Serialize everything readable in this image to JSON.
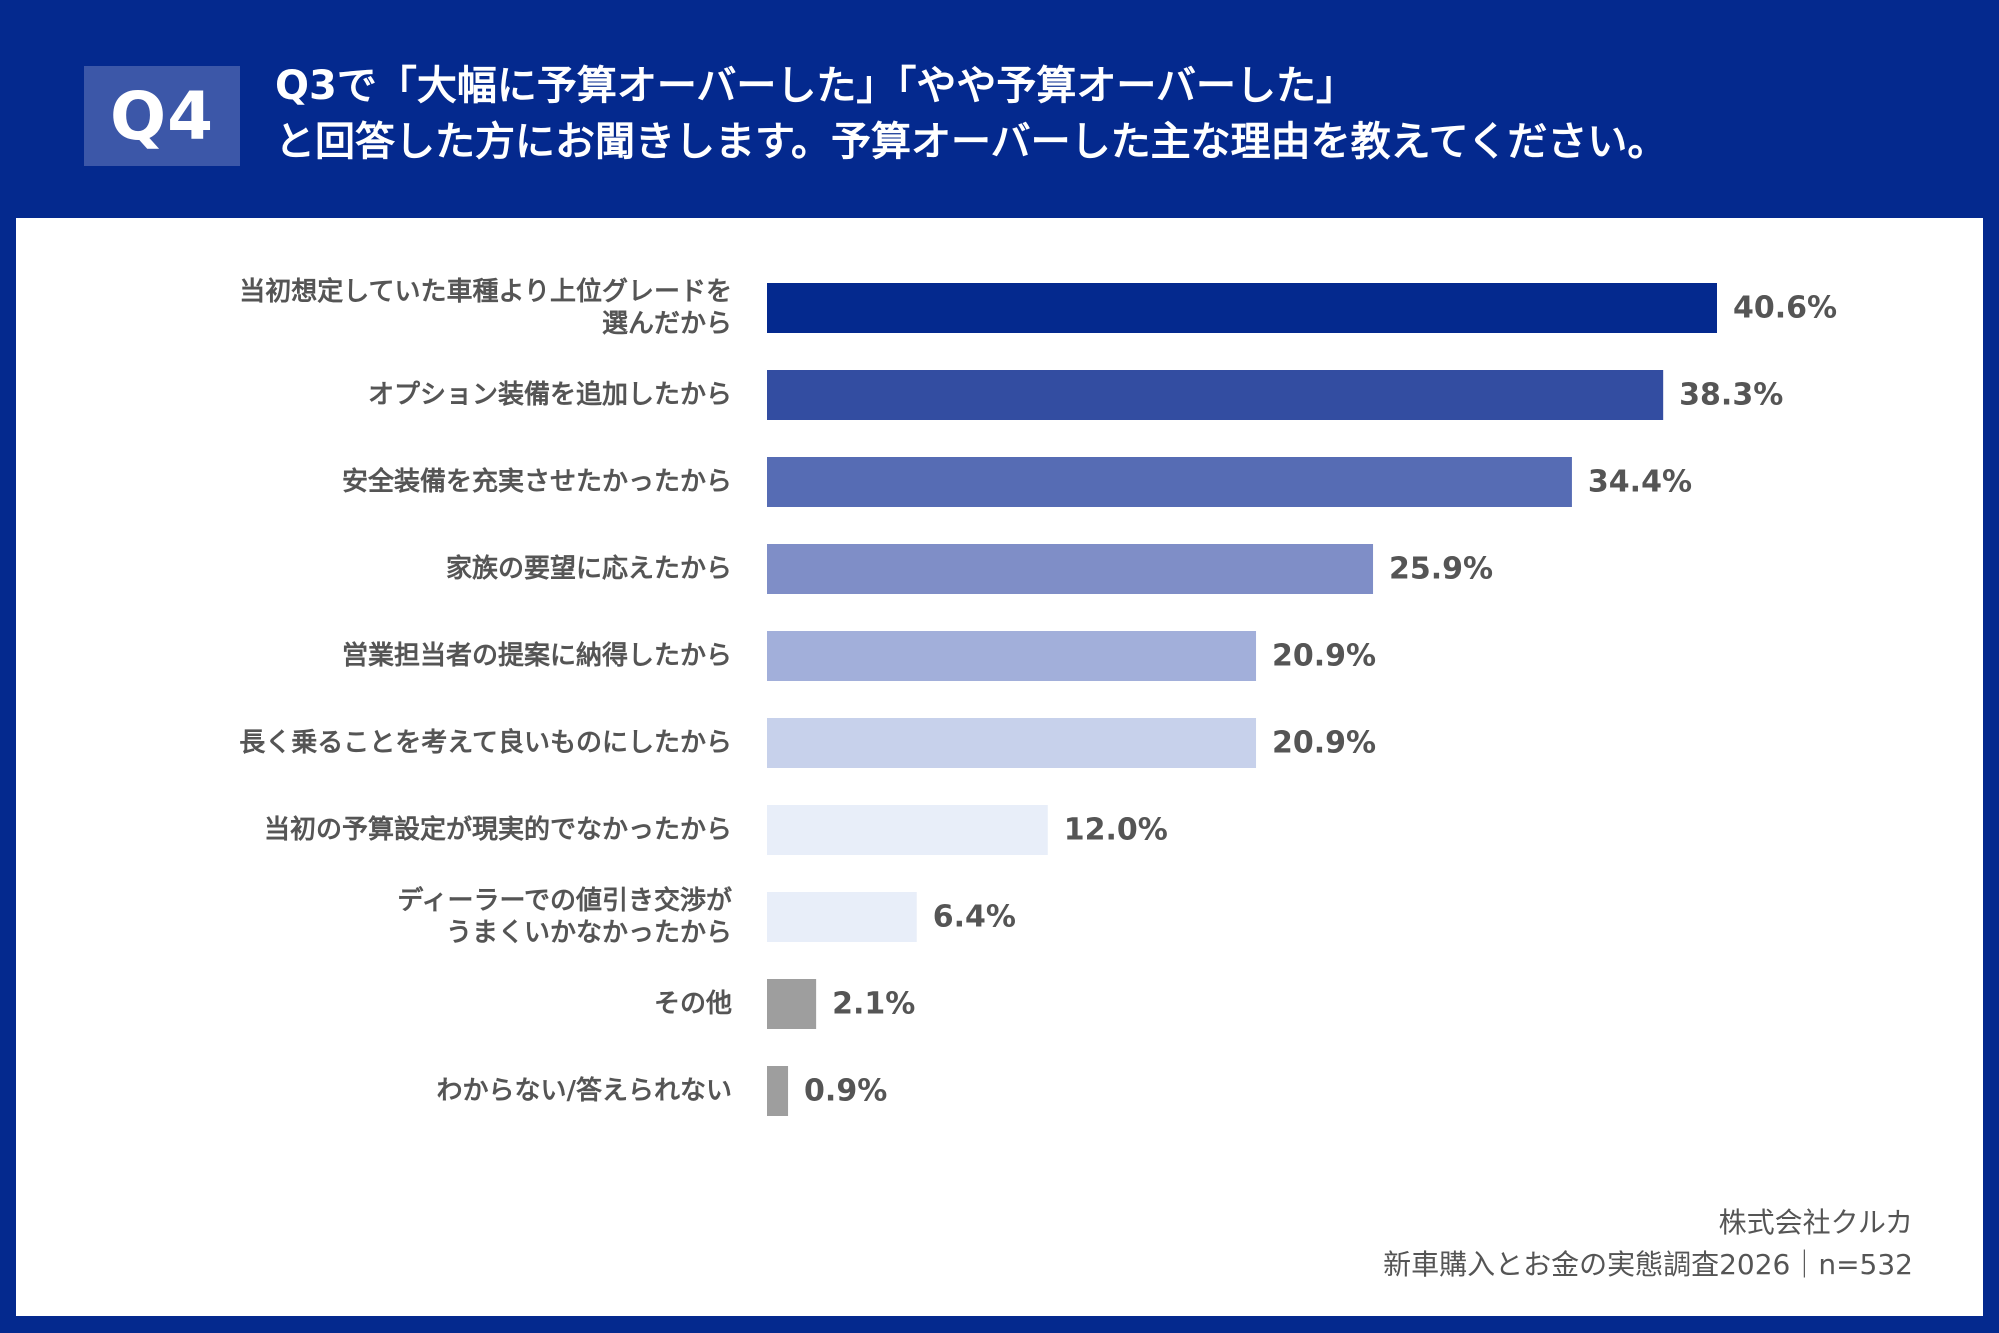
{
  "header": {
    "badge": "Q4",
    "title_line1": "Q3で「大幅に予算オーバーした」「やや予算オーバーした」",
    "title_line2": "と回答した方にお聞きします。予算オーバーした主な理由を教えてください。"
  },
  "colors": {
    "background": "#04298e",
    "panel": "#ffffff",
    "text": "#555555",
    "badge": "#3c57a8"
  },
  "chart_data": {
    "type": "bar",
    "orientation": "horizontal",
    "unit": "%",
    "categories": [
      [
        "当初想定していた車種より上位グレードを",
        "選んだから"
      ],
      [
        "オプション装備を追加したから"
      ],
      [
        "安全装備を充実させたかったから"
      ],
      [
        "家族の要望に応えたから"
      ],
      [
        "営業担当者の提案に納得したから"
      ],
      [
        "長く乗ることを考えて良いものにしたから"
      ],
      [
        "当初の予算設定が現実的でなかったから"
      ],
      [
        "ディーラーでの値引き交渉が",
        "うまくいかなかったから"
      ],
      [
        "その他"
      ],
      [
        "わからない/答えられない"
      ]
    ],
    "values": [
      40.6,
      38.3,
      34.4,
      25.9,
      20.9,
      20.9,
      12.0,
      6.4,
      2.1,
      0.9
    ],
    "value_labels": [
      "40.6%",
      "38.3%",
      "34.4%",
      "25.9%",
      "20.9%",
      "20.9%",
      "12.0%",
      "6.4%",
      "2.1%",
      "0.9%"
    ],
    "bar_colors": [
      "#04298e",
      "#334da1",
      "#566cb4",
      "#7f8ec7",
      "#a2afda",
      "#c7d1eb",
      "#e8eef9",
      "#e8eef9",
      "#9e9e9e",
      "#9e9e9e"
    ],
    "xlim": [
      0,
      40.6
    ]
  },
  "source": {
    "company": "株式会社クルカ",
    "survey": "新車購入とお金の実態調査2026｜n=532"
  }
}
